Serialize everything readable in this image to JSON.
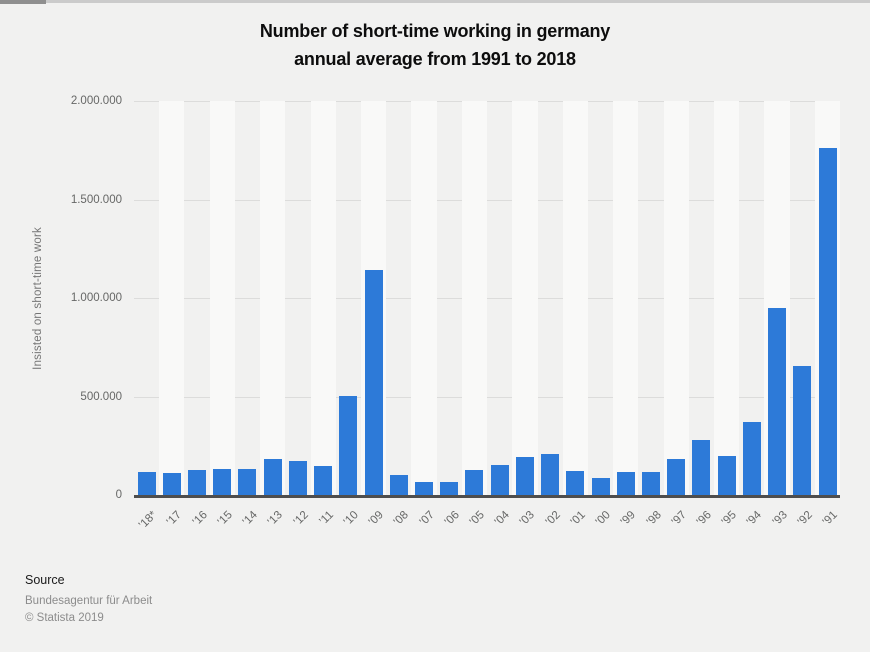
{
  "header": {
    "title_line1": "Number of short-time working in germany",
    "title_line2": "annual average from 1991 to 2018"
  },
  "chart_data": {
    "type": "bar",
    "title": "Number of short-time working in germany annual average from 1991 to 2018",
    "xlabel": "",
    "ylabel": "Insisted on short-time work",
    "ylim": [
      0,
      2000000
    ],
    "grid": true,
    "legend": "none",
    "bar_color": "#2d7ad8",
    "ytick_labels": [
      "2.000.000",
      "1.500.000",
      "1.000.000",
      "500.000",
      "0"
    ],
    "categories": [
      "’18*",
      "’17",
      "’16",
      "’15",
      "’14",
      "’13",
      "’12",
      "’11",
      "’10",
      "’09",
      "’08",
      "’07",
      "’06",
      "’05",
      "’04",
      "’03",
      "’02",
      "’01",
      "’00",
      "’99",
      "’98",
      "’97",
      "’96",
      "’95",
      "’94",
      "’93",
      "’92",
      "’91"
    ],
    "values": [
      118000,
      114000,
      128000,
      130000,
      134000,
      185000,
      173000,
      148000,
      503000,
      1144000,
      102000,
      68000,
      67000,
      126000,
      151000,
      195000,
      207000,
      123000,
      86000,
      119000,
      115000,
      183000,
      277000,
      199000,
      372000,
      948000,
      653000,
      1761000
    ]
  },
  "footer": {
    "source_label": "Source",
    "source_value": "Bundesagentur für Arbeit",
    "copyright": "© Statista 2019"
  }
}
